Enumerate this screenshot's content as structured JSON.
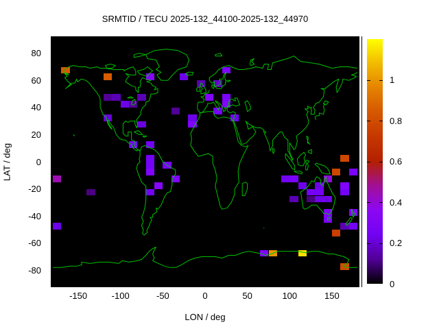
{
  "title": "SRMTID / TECU 2025-132_44100-2025-132_44970",
  "axes": {
    "x_label": "LON / deg",
    "y_label": "LAT / deg",
    "x_ticks": [
      -150,
      -100,
      -50,
      0,
      50,
      100,
      150
    ],
    "y_ticks": [
      80,
      60,
      40,
      20,
      0,
      -20,
      -40,
      -60,
      -80
    ],
    "x_range": [
      -182.5,
      182.5
    ],
    "y_range": [
      -92.5,
      92.5
    ]
  },
  "colorbar": {
    "tick_labels": [
      "0",
      "0.2",
      "0.4",
      "0.6",
      "0.8",
      "1"
    ],
    "tick_values": [
      0,
      0.2,
      0.4,
      0.6,
      0.8,
      1
    ],
    "min": 0,
    "max": 1.2,
    "palette_name": "gnuplot-default-pm3d"
  },
  "colors": {
    "page_background": "#ffffff",
    "plot_background": "#000000",
    "coastline": "#00c000",
    "text": "#000000",
    "palette_stops": [
      "#000000",
      "#510096",
      "#7202f3",
      "#8c07f3",
      "#a11096",
      "#b42000",
      "#c63700",
      "#d55700",
      "#e48300",
      "#f2ba00",
      "#ffff00"
    ]
  },
  "chart_data": {
    "type": "heatmap",
    "title": "SRMTID / TECU 2025-132_44100-2025-132_44970",
    "xlabel": "LON / deg",
    "ylabel": "LAT / deg",
    "xlim": [
      -182.5,
      182.5
    ],
    "ylim": [
      -92.5,
      92.5
    ],
    "value_range": [
      0,
      1.2
    ],
    "cell_size_deg": {
      "lon": 10,
      "lat": 5
    },
    "cells": [
      {
        "lon": -165,
        "lat": 67.5,
        "value": 0.85
      },
      {
        "lon": -115,
        "lat": 62.5,
        "value": 0.85
      },
      {
        "lon": -65,
        "lat": 62.5,
        "value": 0.33
      },
      {
        "lon": -25,
        "lat": 62.5,
        "value": 0.22
      },
      {
        "lon": -5,
        "lat": 57.5,
        "value": 0.15
      },
      {
        "lon": 25,
        "lat": 67.5,
        "value": 0.3
      },
      {
        "lon": 15,
        "lat": 57.5,
        "value": 0.18
      },
      {
        "lon": -115,
        "lat": 47.5,
        "value": 0.12
      },
      {
        "lon": -105,
        "lat": 47.5,
        "value": 0.15
      },
      {
        "lon": -75,
        "lat": 47.5,
        "value": 0.15
      },
      {
        "lon": -95,
        "lat": 42.5,
        "value": 0.22
      },
      {
        "lon": -85,
        "lat": 42.5,
        "value": 0.12
      },
      {
        "lon": 5,
        "lat": 47.5,
        "value": 0.3
      },
      {
        "lon": 25,
        "lat": 47.5,
        "value": 0.28
      },
      {
        "lon": 25,
        "lat": 42.5,
        "value": 0.32
      },
      {
        "lon": 15,
        "lat": 37.5,
        "value": 0.25
      },
      {
        "lon": 35,
        "lat": 32.5,
        "value": 0.25
      },
      {
        "lon": -35,
        "lat": 37.5,
        "value": 0.12
      },
      {
        "lon": -15,
        "lat": 32.5,
        "value": 0.22
      },
      {
        "lon": -15,
        "lat": 27.5,
        "value": 0.3
      },
      {
        "lon": -115,
        "lat": 32.5,
        "value": 0.2
      },
      {
        "lon": -75,
        "lat": 27.5,
        "value": 0.2
      },
      {
        "lon": -85,
        "lat": 12.5,
        "value": 0.25
      },
      {
        "lon": -65,
        "lat": 12.5,
        "value": 0.25
      },
      {
        "lon": -65,
        "lat": 2.5,
        "value": 0.25
      },
      {
        "lon": -65,
        "lat": -2.5,
        "value": 0.25
      },
      {
        "lon": -65,
        "lat": -7.5,
        "value": 0.3
      },
      {
        "lon": -45,
        "lat": -2.5,
        "value": 0.28
      },
      {
        "lon": -35,
        "lat": -12.5,
        "value": 0.3
      },
      {
        "lon": -55,
        "lat": -17.5,
        "value": 0.33
      },
      {
        "lon": -65,
        "lat": -22.5,
        "value": 0.25
      },
      {
        "lon": -175,
        "lat": -12.5,
        "value": 0.45
      },
      {
        "lon": -135,
        "lat": -22.5,
        "value": 0.1
      },
      {
        "lon": -175,
        "lat": -47.5,
        "value": 0.22
      },
      {
        "lon": 95,
        "lat": -12.5,
        "value": 0.25
      },
      {
        "lon": 105,
        "lat": -12.5,
        "value": 0.27
      },
      {
        "lon": 145,
        "lat": -12.5,
        "value": 0.4
      },
      {
        "lon": 165,
        "lat": 2.5,
        "value": 0.78
      },
      {
        "lon": 155,
        "lat": -7.5,
        "value": 0.78
      },
      {
        "lon": 175,
        "lat": -7.5,
        "value": 0.28
      },
      {
        "lon": 115,
        "lat": -17.5,
        "value": 0.22
      },
      {
        "lon": 135,
        "lat": -17.5,
        "value": 0.22
      },
      {
        "lon": 165,
        "lat": -17.5,
        "value": 0.3
      },
      {
        "lon": 125,
        "lat": -22.5,
        "value": 0.25
      },
      {
        "lon": 135,
        "lat": -22.5,
        "value": 0.25
      },
      {
        "lon": 165,
        "lat": -22.5,
        "value": 0.25
      },
      {
        "lon": 105,
        "lat": -27.5,
        "value": 0.15
      },
      {
        "lon": 125,
        "lat": -27.5,
        "value": 0.1
      },
      {
        "lon": 135,
        "lat": -27.5,
        "value": 0.22
      },
      {
        "lon": 145,
        "lat": -27.5,
        "value": 0.22
      },
      {
        "lon": 145,
        "lat": -37.5,
        "value": 0.3
      },
      {
        "lon": 175,
        "lat": -37.5,
        "value": 0.3
      },
      {
        "lon": 145,
        "lat": -42.5,
        "value": 0.28
      },
      {
        "lon": 165,
        "lat": -47.5,
        "value": 0.15
      },
      {
        "lon": 175,
        "lat": -47.5,
        "value": 0.25
      },
      {
        "lon": 155,
        "lat": -52.5,
        "value": 0.75
      },
      {
        "lon": 70,
        "lat": -67.5,
        "value": 0.3
      },
      {
        "lon": 80,
        "lat": -67.5,
        "value": 1.0
      },
      {
        "lon": 115,
        "lat": -67.5,
        "value": 1.15
      },
      {
        "lon": 165,
        "lat": -77.5,
        "value": 0.8
      }
    ]
  }
}
